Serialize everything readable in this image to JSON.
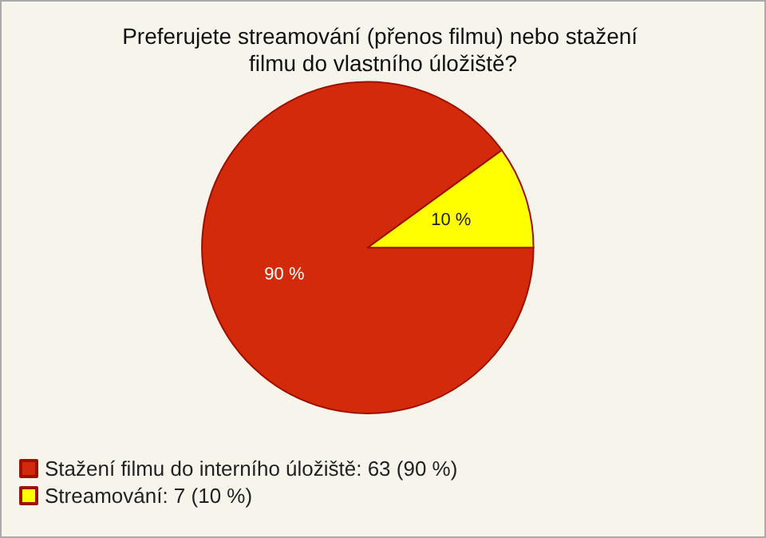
{
  "chart_data": {
    "type": "pie",
    "title": "Preferujete streamování (přenos filmu) nebo stažení filmu do vlastního úložiště?",
    "categories": [
      "Stažení filmu do interního úložiště: 63 (90 %)",
      "Streamování: 7 (10 %)"
    ],
    "values": [
      90,
      10
    ],
    "colors": [
      "#d42a0c",
      "#ffff00"
    ],
    "value_labels": [
      "90 %",
      "10 %"
    ],
    "legend": "bottom left"
  }
}
